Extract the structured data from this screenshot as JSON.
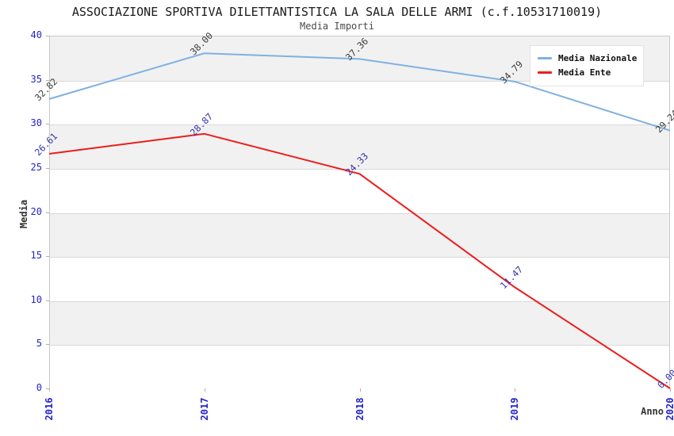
{
  "header": {
    "title": "ASSOCIAZIONE SPORTIVA DILETTANTISTICA LA SALA DELLE ARMI (c.f.10531710019)",
    "subtitle": "Media Importi"
  },
  "axes": {
    "x_title": "Anno",
    "y_title": "Media",
    "x_ticks": [
      "2016",
      "2017",
      "2018",
      "2019",
      "2020"
    ],
    "y_ticks": [
      "0",
      "5",
      "10",
      "15",
      "20",
      "25",
      "30",
      "35",
      "40"
    ]
  },
  "legend": {
    "position": "top-right",
    "items": [
      {
        "label": "Media Nazionale",
        "color": "#7fb1e1"
      },
      {
        "label": "Media Ente",
        "color": "#ed1c1c"
      }
    ]
  },
  "style": {
    "band_fill": "#f1f1f1",
    "band_alt": "#ffffff",
    "grid_color": "#d9d9d9",
    "plot_border": "#c9c9c9",
    "tick_color": "#2424cc",
    "title_color": "#1a1a1a",
    "subtitle_color": "#4a4a4a",
    "axis_title_color": "#333333",
    "legend_bg": "#ffffff"
  },
  "chart_data": {
    "type": "line",
    "title": "ASSOCIAZIONE SPORTIVA DILETTANTISTICA LA SALA DELLE ARMI (c.f.10531710019)",
    "subtitle": "Media Importi",
    "categories": [
      "2016",
      "2017",
      "2018",
      "2019",
      "2020"
    ],
    "series": [
      {
        "name": "Media Nazionale",
        "color": "#7fb1e1",
        "label_color": "#3c3c3c",
        "values": [
          32.82,
          38.0,
          37.36,
          34.79,
          29.24
        ]
      },
      {
        "name": "Media Ente",
        "color": "#ed1c1c",
        "label_color": "#3232aa",
        "values": [
          26.61,
          28.87,
          24.33,
          11.47,
          0.0
        ]
      }
    ],
    "xlabel": "Anno",
    "ylabel": "Media",
    "ylim": [
      0,
      40
    ],
    "y_step": 5,
    "grid": "horizontal-bands-alternating",
    "legend_position": "top-right",
    "value_labels": {
      "rotation": -45,
      "format": "two-decimals"
    }
  }
}
